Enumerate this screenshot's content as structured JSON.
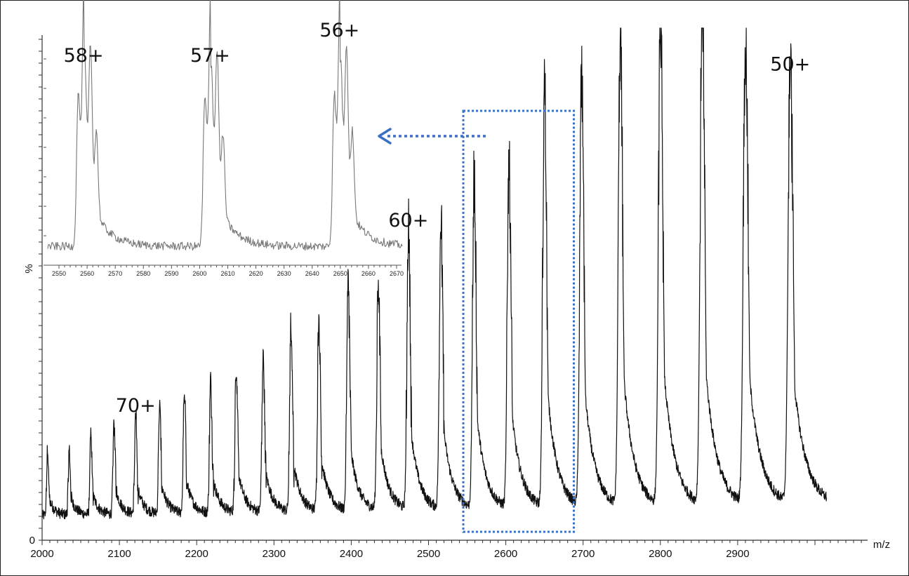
{
  "chart_data": [
    {
      "type": "line",
      "xlabel": "m/z",
      "ylabel": "%",
      "xlim": [
        2000,
        3000
      ],
      "xticks": [
        "2000",
        "2100",
        "2200",
        "2300",
        "2400",
        "2500",
        "2600",
        "2700",
        "2800",
        "2900"
      ],
      "yticks": [
        "0"
      ],
      "grid": false,
      "line_color": "#111111",
      "series": [
        {
          "peaks": [
            {
              "mz": 2007,
              "intensity": 13
            },
            {
              "mz": 2035,
              "intensity": 13
            },
            {
              "mz": 2063,
              "intensity": 16
            },
            {
              "mz": 2093,
              "intensity": 19
            },
            {
              "mz": 2121,
              "intensity": 20
            },
            {
              "mz": 2152,
              "intensity": 22
            },
            {
              "mz": 2184,
              "intensity": 25
            },
            {
              "mz": 2218,
              "intensity": 27
            },
            {
              "mz": 2251,
              "intensity": 30
            },
            {
              "mz": 2286,
              "intensity": 31
            },
            {
              "mz": 2322,
              "intensity": 38
            },
            {
              "mz": 2358,
              "intensity": 40
            },
            {
              "mz": 2396,
              "intensity": 46
            },
            {
              "mz": 2435,
              "intensity": 47
            },
            {
              "mz": 2474,
              "intensity": 58
            },
            {
              "mz": 2516,
              "intensity": 59
            },
            {
              "mz": 2559,
              "intensity": 68
            },
            {
              "mz": 2604,
              "intensity": 70
            },
            {
              "mz": 2650,
              "intensity": 86
            },
            {
              "mz": 2698,
              "intensity": 86
            },
            {
              "mz": 2748,
              "intensity": 97
            },
            {
              "mz": 2800,
              "intensity": 100
            },
            {
              "mz": 2854,
              "intensity": 100
            },
            {
              "mz": 2910,
              "intensity": 97
            },
            {
              "mz": 2968,
              "intensity": 90
            }
          ]
        }
      ],
      "annotations": [
        {
          "text": "70+",
          "mz": 2121
        },
        {
          "text": "60+",
          "mz": 2474
        },
        {
          "text": "50+",
          "mz": 2968
        }
      ],
      "highlight_box": {
        "x_range": [
          2545,
          2688
        ],
        "color": "#3a6fc4",
        "style": "dotted"
      }
    },
    {
      "type": "line",
      "role": "inset",
      "xlim": [
        2546,
        2672
      ],
      "xticks": [
        "2550",
        "2560",
        "2570",
        "2580",
        "2590",
        "2600",
        "2610",
        "2620",
        "2630",
        "2640",
        "2650",
        "2660",
        "2670"
      ],
      "line_color": "#777777",
      "series": [
        {
          "peaks": [
            {
              "mz": 2559,
              "intensity": 100,
              "label": "58+"
            },
            {
              "mz": 2604,
              "intensity": 97,
              "label": "57+"
            },
            {
              "mz": 2650,
              "intensity": 100,
              "label": "56+"
            }
          ]
        }
      ],
      "annotations": [
        {
          "text": "58+",
          "mz": 2559
        },
        {
          "text": "57+",
          "mz": 2604
        },
        {
          "text": "56+",
          "mz": 2650
        }
      ]
    }
  ],
  "arrow": {
    "color": "#3a6fc4",
    "style": "dotted",
    "direction": "left"
  }
}
